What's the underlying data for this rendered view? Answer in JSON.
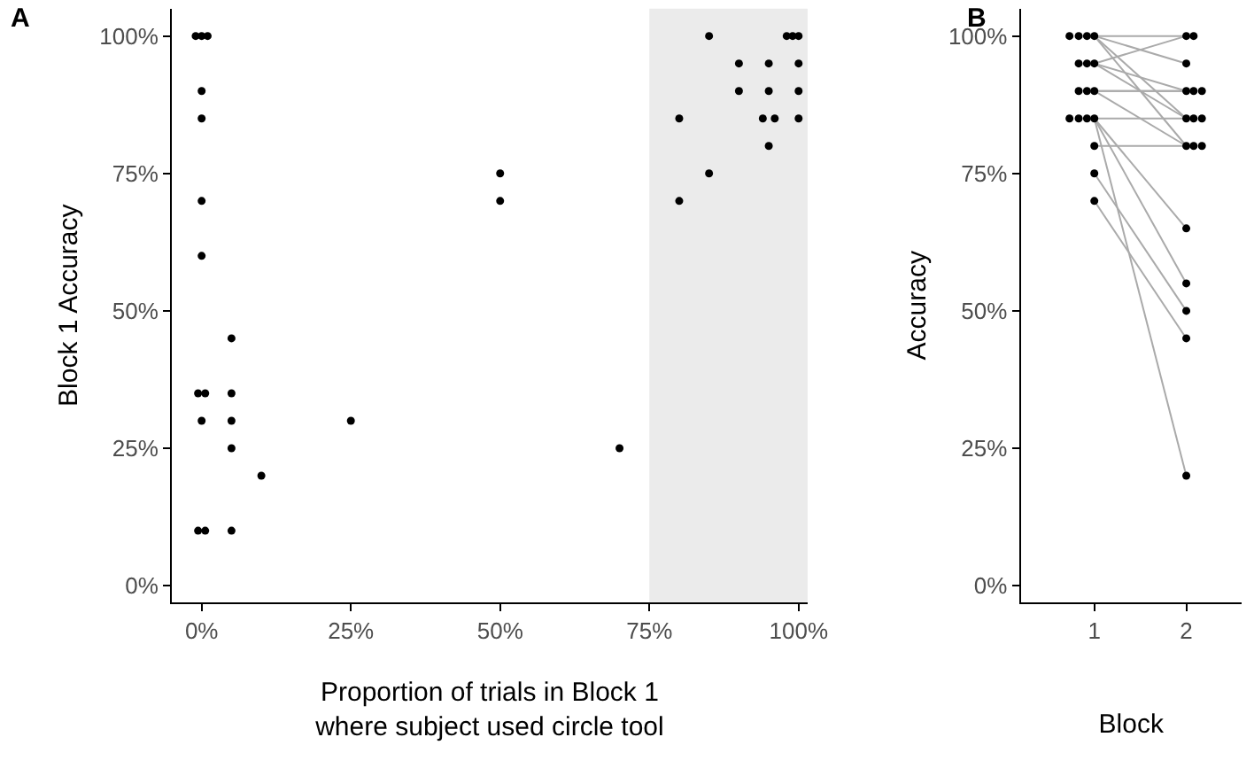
{
  "chart_data": [
    {
      "type": "scatter",
      "annotations": [
        "A"
      ],
      "xlabel": "Proportion of trials in Block 1\nwhere subject used circle tool",
      "ylabel": "Block 1 Accuracy",
      "xlim": [
        -5,
        101.5
      ],
      "ylim": [
        -3,
        105
      ],
      "xticks": [
        {
          "value": 0,
          "label": "0%"
        },
        {
          "value": 25,
          "label": "25%"
        },
        {
          "value": 50,
          "label": "50%"
        },
        {
          "value": 75,
          "label": "75%"
        },
        {
          "value": 100,
          "label": "100%"
        }
      ],
      "yticks": [
        {
          "value": 0,
          "label": "0%"
        },
        {
          "value": 25,
          "label": "25%"
        },
        {
          "value": 50,
          "label": "50%"
        },
        {
          "value": 75,
          "label": "75%"
        },
        {
          "value": 100,
          "label": "100%"
        }
      ],
      "grid": false,
      "marker": "circle",
      "bands": [
        {
          "axis": "x",
          "from": 75,
          "to": 101.5,
          "color": "#ebebeb"
        }
      ],
      "series": [
        {
          "color": "#000000",
          "x": [
            -1,
            0,
            1,
            0,
            0,
            0,
            0,
            5,
            -0.6,
            0.6,
            5,
            0,
            5,
            25,
            5,
            10,
            -0.6,
            0.6,
            5,
            50,
            50,
            70,
            80,
            80,
            85,
            85,
            90,
            90,
            95,
            95,
            94,
            96,
            95,
            98,
            99,
            100,
            100,
            100,
            100
          ],
          "values": [
            100,
            100,
            100,
            90,
            85,
            70,
            60,
            45,
            35,
            35,
            35,
            30,
            30,
            30,
            25,
            20,
            10,
            10,
            10,
            75,
            70,
            25,
            85,
            70,
            100,
            75,
            95,
            90,
            95,
            90,
            85,
            85,
            80,
            100,
            100,
            100,
            95,
            90,
            85
          ]
        }
      ]
    },
    {
      "type": "scatter",
      "annotations": [
        "B"
      ],
      "xlabel": "Block",
      "ylabel": "Accuracy",
      "xlim": [
        0.2,
        2.6
      ],
      "ylim": [
        -3,
        105
      ],
      "xticks": [
        1,
        2
      ],
      "yticks": [
        {
          "value": 0,
          "label": "0%"
        },
        {
          "value": 25,
          "label": "25%"
        },
        {
          "value": 50,
          "label": "50%"
        },
        {
          "value": 75,
          "label": "75%"
        },
        {
          "value": 100,
          "label": "100%"
        }
      ],
      "grid": false,
      "marker": "circle",
      "series": [
        {
          "type": "line",
          "color": "#aaaaaa",
          "marker": "none",
          "x": [
            1,
            2
          ],
          "values": [
            100,
            100
          ]
        },
        {
          "type": "line",
          "color": "#aaaaaa",
          "marker": "none",
          "x": [
            1,
            2
          ],
          "values": [
            100,
            95
          ]
        },
        {
          "type": "line",
          "color": "#aaaaaa",
          "marker": "none",
          "x": [
            1,
            2
          ],
          "values": [
            100,
            85
          ]
        },
        {
          "type": "line",
          "color": "#aaaaaa",
          "marker": "none",
          "x": [
            1,
            2
          ],
          "values": [
            100,
            80
          ]
        },
        {
          "type": "line",
          "color": "#aaaaaa",
          "marker": "none",
          "x": [
            1,
            2
          ],
          "values": [
            95,
            100
          ]
        },
        {
          "type": "line",
          "color": "#aaaaaa",
          "marker": "none",
          "x": [
            1,
            2
          ],
          "values": [
            95,
            90
          ]
        },
        {
          "type": "line",
          "color": "#aaaaaa",
          "marker": "none",
          "x": [
            1,
            2
          ],
          "values": [
            95,
            85
          ]
        },
        {
          "type": "line",
          "color": "#aaaaaa",
          "marker": "none",
          "x": [
            1,
            2
          ],
          "values": [
            90,
            90
          ]
        },
        {
          "type": "line",
          "color": "#aaaaaa",
          "marker": "none",
          "x": [
            1,
            2
          ],
          "values": [
            90,
            90
          ]
        },
        {
          "type": "line",
          "color": "#aaaaaa",
          "marker": "none",
          "x": [
            1,
            2
          ],
          "values": [
            90,
            80
          ]
        },
        {
          "type": "line",
          "color": "#aaaaaa",
          "marker": "none",
          "x": [
            1,
            2
          ],
          "values": [
            85,
            85
          ]
        },
        {
          "type": "line",
          "color": "#aaaaaa",
          "marker": "none",
          "x": [
            1,
            2
          ],
          "values": [
            85,
            65
          ]
        },
        {
          "type": "line",
          "color": "#aaaaaa",
          "marker": "none",
          "x": [
            1,
            2
          ],
          "values": [
            85,
            55
          ]
        },
        {
          "type": "line",
          "color": "#aaaaaa",
          "marker": "none",
          "x": [
            1,
            2
          ],
          "values": [
            85,
            20
          ]
        },
        {
          "type": "line",
          "color": "#aaaaaa",
          "marker": "none",
          "x": [
            1,
            2
          ],
          "values": [
            80,
            80
          ]
        },
        {
          "type": "line",
          "color": "#aaaaaa",
          "marker": "none",
          "x": [
            1,
            2
          ],
          "values": [
            75,
            50
          ]
        },
        {
          "type": "line",
          "color": "#aaaaaa",
          "marker": "none",
          "x": [
            1,
            2
          ],
          "values": [
            70,
            45
          ]
        },
        {
          "color": "#000000",
          "x": [
            0.73,
            0.83,
            0.92,
            1.0,
            0.83,
            0.92,
            1.0,
            0.83,
            0.92,
            1.0,
            0.73,
            0.83,
            0.92,
            1.0,
            1.0,
            1.0,
            1.0,
            2.0,
            2.08,
            2.0,
            2.0,
            2.08,
            2.17,
            2.0,
            2.08,
            2.17,
            2.0,
            2.08,
            2.17,
            2.0,
            2.0,
            2.0,
            2.0,
            2.0
          ],
          "values": [
            100,
            100,
            100,
            100,
            95,
            95,
            95,
            90,
            90,
            90,
            85,
            85,
            85,
            85,
            80,
            75,
            70,
            100,
            100,
            95,
            90,
            90,
            90,
            85,
            85,
            85,
            80,
            80,
            80,
            65,
            55,
            50,
            45,
            20
          ]
        }
      ]
    }
  ]
}
